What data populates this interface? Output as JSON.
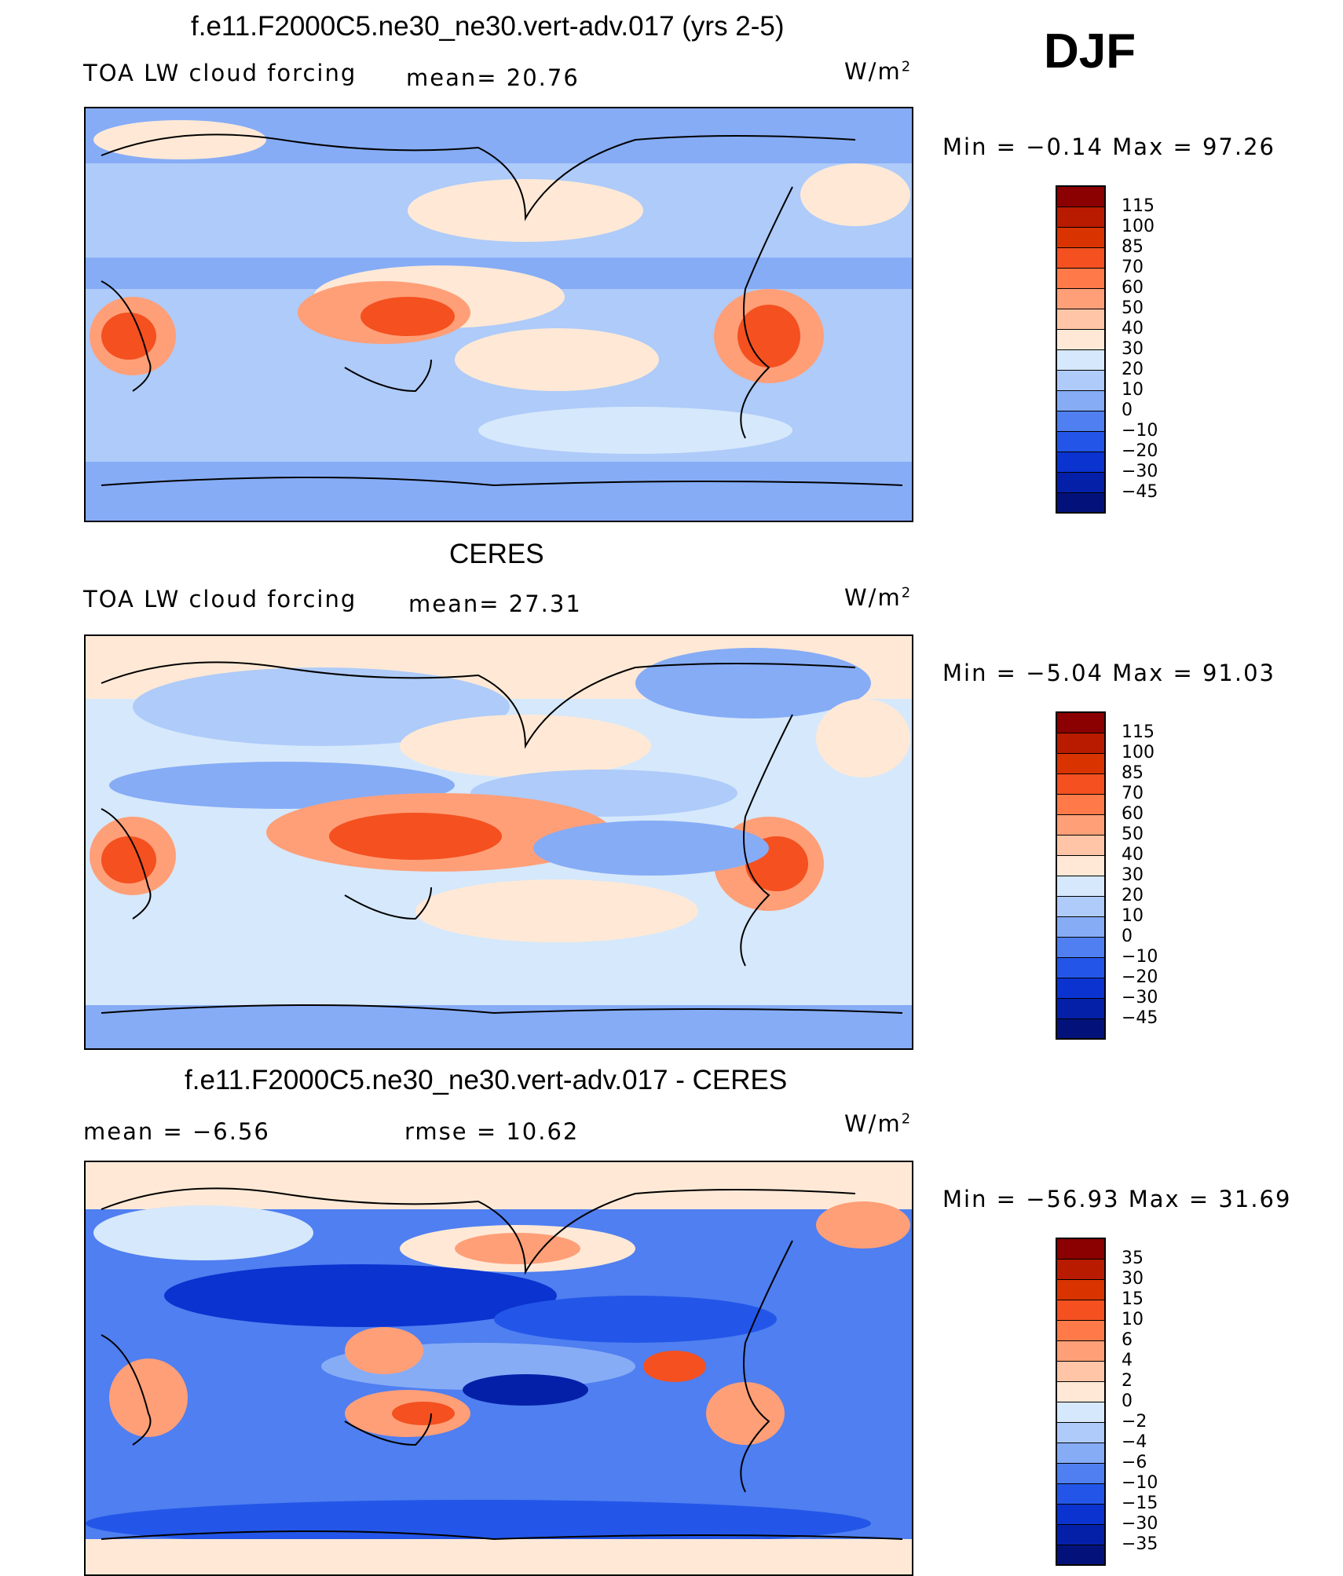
{
  "season": "DJF",
  "panels": [
    {
      "title": "f.e11.F2000C5.ne30_ne30.vert-adv.017 (yrs 2-5)",
      "left_label": "TOA LW cloud forcing",
      "mid_label": "mean=  20.76",
      "units": "W/m",
      "units_sup": "2",
      "minmax": "Min =  −0.14 Max =  97.26",
      "colorbar_labels": [
        "115",
        "100",
        "85",
        "70",
        "60",
        "50",
        "40",
        "30",
        "20",
        "10",
        "0",
        "−10",
        "−20",
        "−30",
        "−45"
      ]
    },
    {
      "title": "CERES",
      "left_label": "TOA LW cloud forcing",
      "mid_label": "mean=  27.31",
      "units": "W/m",
      "units_sup": "2",
      "minmax": "Min =  −5.04 Max =  91.03",
      "colorbar_labels": [
        "115",
        "100",
        "85",
        "70",
        "60",
        "50",
        "40",
        "30",
        "20",
        "10",
        "0",
        "−10",
        "−20",
        "−30",
        "−45"
      ]
    },
    {
      "title": "f.e11.F2000C5.ne30_ne30.vert-adv.017 - CERES",
      "left_label": "mean =  −6.56",
      "mid_label": "rmse =  10.62",
      "units": "W/m",
      "units_sup": "2",
      "minmax": "Min = −56.93 Max =  31.69",
      "colorbar_labels": [
        "35",
        "30",
        "15",
        "10",
        "6",
        "4",
        "2",
        "0",
        "−2",
        "−4",
        "−6",
        "−10",
        "−15",
        "−30",
        "−35"
      ]
    }
  ],
  "colorbar_colors": [
    "#8b0000",
    "#b81b00",
    "#d93400",
    "#f45020",
    "#ff7a48",
    "#ff9f78",
    "#ffc5a6",
    "#ffe9d6",
    "#d6e8fb",
    "#aecbf9",
    "#86acf6",
    "#4f7ff0",
    "#2356e8",
    "#0a33d0",
    "#0520a8",
    "#03127a"
  ],
  "map_colors": {
    "ocean_low": "#86acf6",
    "ocean_mid": "#aecbf9",
    "light": "#d6e8fb",
    "peach": "#ffe9d6",
    "salmon": "#ff9f78",
    "orange": "#f45020",
    "red": "#d93400",
    "blue": "#2356e8",
    "deep_blue": "#0a33d0"
  }
}
